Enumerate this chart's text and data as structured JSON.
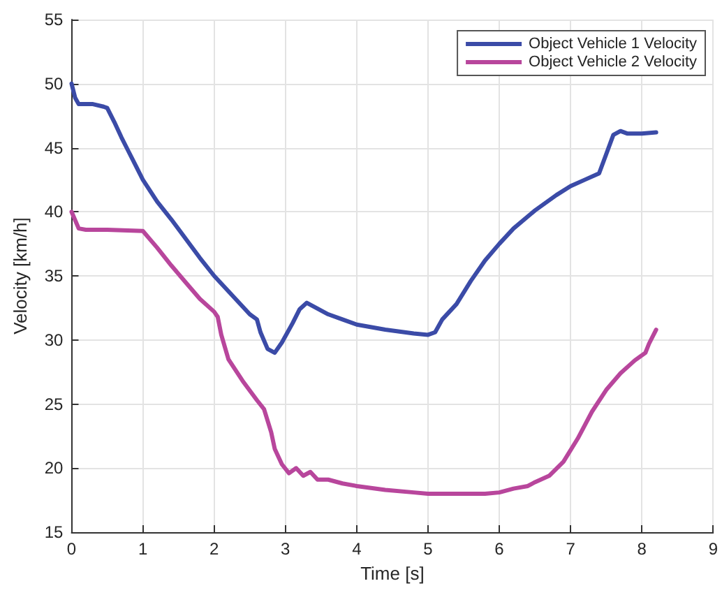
{
  "chart_data": {
    "type": "line",
    "xlabel": "Time [s]",
    "ylabel": "Velocity [km/h]",
    "xlim": [
      0,
      9
    ],
    "xticks": [
      0,
      1,
      2,
      3,
      4,
      5,
      6,
      7,
      8,
      9
    ],
    "ylim": [
      15,
      55
    ],
    "yticks": [
      15,
      20,
      25,
      30,
      35,
      40,
      45,
      50,
      55
    ],
    "grid": true,
    "legend": "top right",
    "marker": "none",
    "line_style": "solid",
    "series": [
      {
        "name": "Object Vehicle 1 Velocity",
        "color": "#3b4ba7",
        "x": [
          0,
          0.05,
          0.1,
          0.2,
          0.3,
          0.45,
          0.5,
          0.6,
          0.7,
          0.8,
          0.9,
          1.0,
          1.2,
          1.4,
          1.6,
          1.8,
          2.0,
          2.2,
          2.4,
          2.5,
          2.6,
          2.65,
          2.75,
          2.85,
          2.95,
          3.1,
          3.2,
          3.3,
          3.4,
          3.6,
          3.8,
          4.0,
          4.4,
          4.8,
          5.0,
          5.1,
          5.2,
          5.4,
          5.6,
          5.8,
          6.0,
          6.2,
          6.5,
          6.8,
          7.0,
          7.2,
          7.4,
          7.5,
          7.6,
          7.7,
          7.8,
          8.0,
          8.2
        ],
        "values": [
          50,
          48.9,
          48.4,
          48.4,
          48.4,
          48.2,
          48.1,
          47,
          45.8,
          44.7,
          43.6,
          42.5,
          40.8,
          39.4,
          37.9,
          36.4,
          35,
          33.8,
          32.6,
          32,
          31.6,
          30.6,
          29.3,
          29.0,
          29.8,
          31.3,
          32.4,
          32.9,
          32.6,
          32,
          31.6,
          31.2,
          30.8,
          30.5,
          30.4,
          30.6,
          31.6,
          32.8,
          34.6,
          36.2,
          37.5,
          38.7,
          40.1,
          41.3,
          42,
          42.5,
          43,
          44.5,
          46,
          46.3,
          46.1,
          46.1,
          46.2
        ]
      },
      {
        "name": "Object Vehicle 2 Velocity",
        "color": "#b8469c",
        "x": [
          0,
          0.1,
          0.2,
          0.5,
          1.0,
          1.2,
          1.4,
          1.6,
          1.8,
          2.0,
          2.05,
          2.1,
          2.2,
          2.4,
          2.6,
          2.7,
          2.8,
          2.85,
          2.95,
          3.05,
          3.15,
          3.25,
          3.35,
          3.45,
          3.6,
          3.8,
          4.0,
          4.4,
          4.8,
          5.0,
          5.5,
          5.8,
          6.0,
          6.2,
          6.4,
          6.5,
          6.7,
          6.9,
          7.1,
          7.3,
          7.5,
          7.7,
          7.9,
          8.05,
          8.1,
          8.2
        ],
        "values": [
          40,
          38.7,
          38.6,
          38.6,
          38.5,
          37.2,
          35.8,
          34.5,
          33.2,
          32.2,
          31.8,
          30.4,
          28.5,
          26.8,
          25.3,
          24.6,
          22.8,
          21.5,
          20.3,
          19.6,
          20,
          19.4,
          19.7,
          19.1,
          19.1,
          18.8,
          18.6,
          18.3,
          18.1,
          18.0,
          18.0,
          18.0,
          18.1,
          18.4,
          18.6,
          18.9,
          19.4,
          20.5,
          22.3,
          24.4,
          26.1,
          27.4,
          28.4,
          29.0,
          29.7,
          30.8
        ]
      }
    ]
  }
}
